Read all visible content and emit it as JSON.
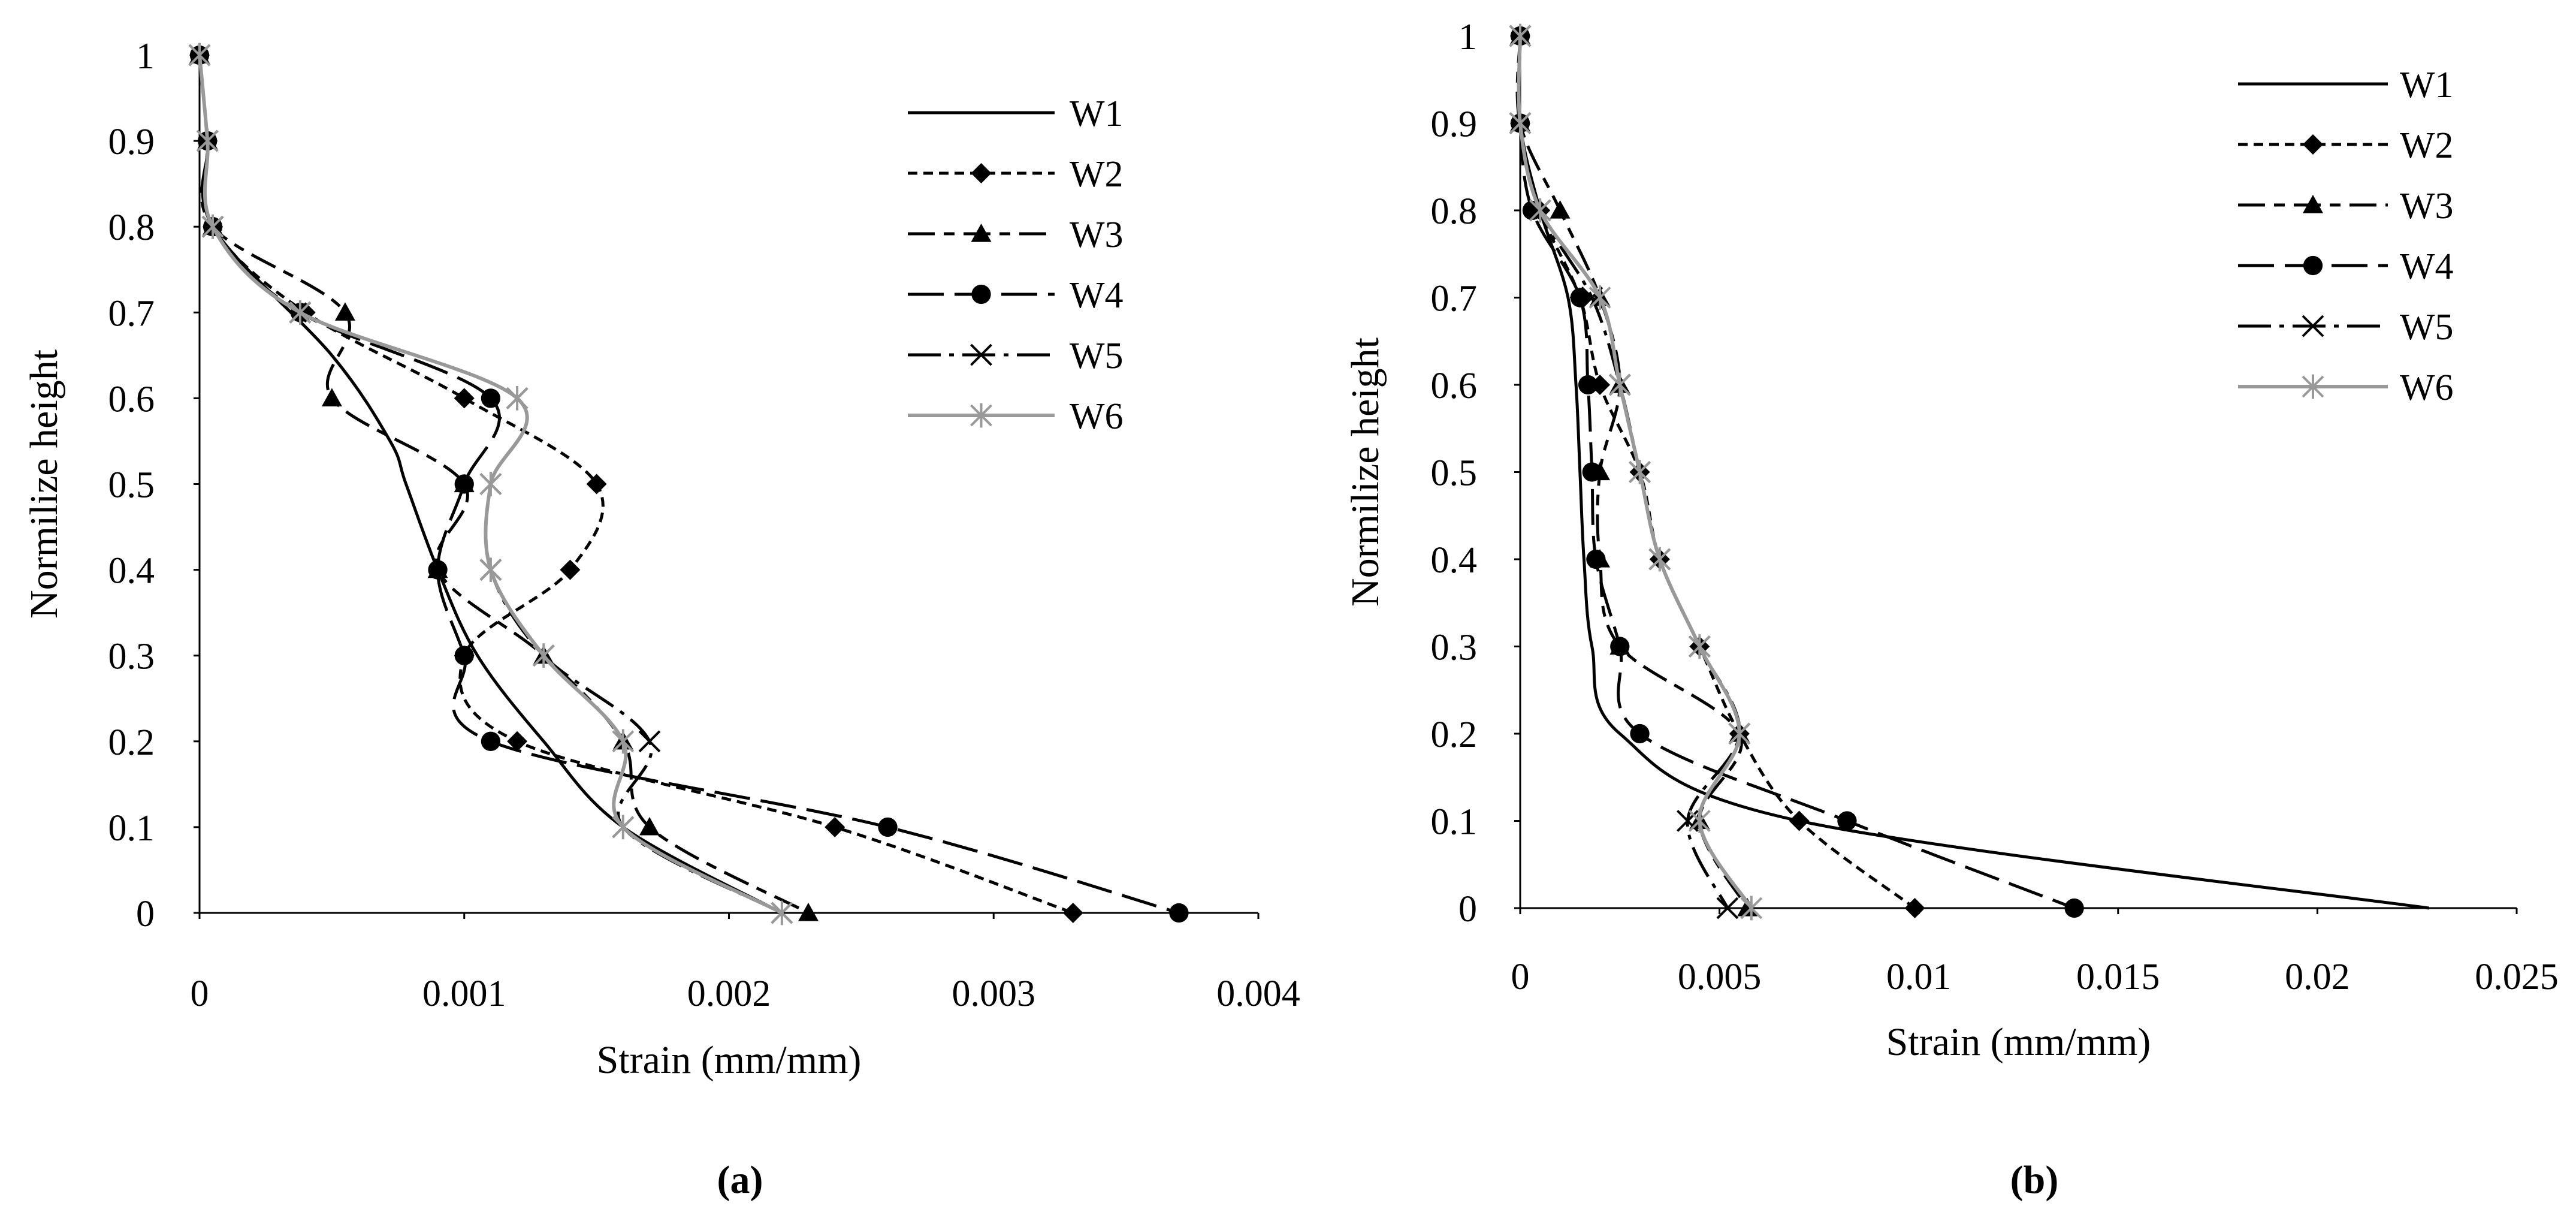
{
  "chart_data": [
    {
      "type": "line",
      "panel_label": "(a)",
      "xlabel": "Strain (mm/mm)",
      "ylabel": "Normilize height",
      "xlim": [
        0,
        0.004
      ],
      "ylim": [
        0,
        1
      ],
      "xticks": [
        0,
        0.001,
        0.002,
        0.003,
        0.004
      ],
      "xtick_labels": [
        "0",
        "0.001",
        "0.002",
        "0.003",
        "0.004"
      ],
      "yticks": [
        0,
        0.1,
        0.2,
        0.3,
        0.4,
        0.5,
        0.6,
        0.7,
        0.8,
        0.9,
        1
      ],
      "ytick_labels": [
        "0",
        "0.1",
        "0.2",
        "0.3",
        "0.4",
        "0.5",
        "0.6",
        "0.7",
        "0.8",
        "0.9",
        "1"
      ],
      "grid": false,
      "legend_position": "top-right",
      "series": [
        {
          "name": "W1",
          "x": [
            0,
            3e-05,
            5e-05,
            0.0005,
            0.00072,
            0.00078,
            0.0009,
            0.00105,
            0.0013,
            0.0016,
            0.0022
          ],
          "y": [
            1,
            0.9,
            0.8,
            0.65,
            0.55,
            0.5,
            0.4,
            0.3,
            0.2,
            0.1,
            0
          ]
        },
        {
          "name": "W2",
          "x": [
            0,
            3e-05,
            5e-05,
            0.0004,
            0.001,
            0.0015,
            0.0014,
            0.001,
            0.0012,
            0.0024,
            0.0033
          ],
          "y": [
            1,
            0.9,
            0.8,
            0.7,
            0.6,
            0.5,
            0.4,
            0.3,
            0.2,
            0.1,
            0
          ]
        },
        {
          "name": "W3",
          "x": [
            0,
            3e-05,
            5e-05,
            0.00055,
            0.0005,
            0.001,
            0.0009,
            0.0013,
            0.0016,
            0.0017,
            0.0023
          ],
          "y": [
            1,
            0.9,
            0.8,
            0.7,
            0.6,
            0.5,
            0.4,
            0.3,
            0.2,
            0.1,
            0
          ]
        },
        {
          "name": "W4",
          "x": [
            0,
            3e-05,
            5e-05,
            0.00038,
            0.0011,
            0.001,
            0.0009,
            0.001,
            0.0011,
            0.0026,
            0.0037
          ],
          "y": [
            1,
            0.9,
            0.8,
            0.7,
            0.6,
            0.5,
            0.4,
            0.3,
            0.2,
            0.1,
            0
          ]
        },
        {
          "name": "W5",
          "x": [
            0,
            3e-05,
            5e-05,
            0.00038,
            0.0012,
            0.0011,
            0.0011,
            0.0013,
            0.0017,
            0.0016,
            0.0022
          ],
          "y": [
            1,
            0.9,
            0.8,
            0.7,
            0.6,
            0.5,
            0.4,
            0.3,
            0.2,
            0.1,
            0
          ]
        },
        {
          "name": "W6",
          "x": [
            0,
            3e-05,
            5e-05,
            0.00038,
            0.0012,
            0.0011,
            0.0011,
            0.0013,
            0.0016,
            0.0016,
            0.0022
          ],
          "y": [
            1,
            0.9,
            0.8,
            0.7,
            0.6,
            0.5,
            0.4,
            0.3,
            0.2,
            0.1,
            0
          ]
        }
      ]
    },
    {
      "type": "line",
      "panel_label": "(b)",
      "xlabel": "Strain (mm/mm)",
      "ylabel": "Normilize height",
      "xlim": [
        0,
        0.025
      ],
      "ylim": [
        0,
        1
      ],
      "xticks": [
        0,
        0.005,
        0.01,
        0.015,
        0.02,
        0.025
      ],
      "xtick_labels": [
        "0",
        "0.005",
        "0.01",
        "0.015",
        "0.02",
        "0.025"
      ],
      "yticks": [
        0,
        0.1,
        0.2,
        0.3,
        0.4,
        0.5,
        0.6,
        0.7,
        0.8,
        0.9,
        1
      ],
      "ytick_labels": [
        "0",
        "0.1",
        "0.2",
        "0.3",
        "0.4",
        "0.5",
        "0.6",
        "0.7",
        "0.8",
        "0.9",
        "1"
      ],
      "grid": false,
      "legend_position": "top-right",
      "series": [
        {
          "name": "W1",
          "x": [
            0,
            0,
            0.0005,
            0.0012,
            0.0014,
            0.0015,
            0.0016,
            0.0018,
            0.0025,
            0.007,
            0.0228
          ],
          "y": [
            1,
            0.9,
            0.8,
            0.7,
            0.6,
            0.5,
            0.4,
            0.3,
            0.2,
            0.1,
            0
          ]
        },
        {
          "name": "W2",
          "x": [
            0,
            0,
            0.0005,
            0.0015,
            0.002,
            0.003,
            0.0035,
            0.0045,
            0.0055,
            0.007,
            0.0099
          ],
          "y": [
            1,
            0.9,
            0.8,
            0.7,
            0.6,
            0.5,
            0.4,
            0.3,
            0.2,
            0.1,
            0
          ]
        },
        {
          "name": "W3",
          "x": [
            0,
            0,
            0.001,
            0.002,
            0.0025,
            0.002,
            0.002,
            0.0025,
            0.0055,
            0.0045,
            0.0057
          ],
          "y": [
            1,
            0.9,
            0.8,
            0.7,
            0.6,
            0.5,
            0.4,
            0.3,
            0.2,
            0.1,
            0
          ]
        },
        {
          "name": "W4",
          "x": [
            0,
            0,
            0.0003,
            0.0015,
            0.0017,
            0.0018,
            0.0019,
            0.0025,
            0.003,
            0.0082,
            0.0139
          ],
          "y": [
            1,
            0.9,
            0.8,
            0.7,
            0.6,
            0.5,
            0.4,
            0.3,
            0.2,
            0.1,
            0
          ]
        },
        {
          "name": "W5",
          "x": [
            0,
            0,
            0.0005,
            0.0018,
            0.0025,
            0.003,
            0.0035,
            0.0045,
            0.0055,
            0.0042,
            0.0052
          ],
          "y": [
            1,
            0.9,
            0.8,
            0.7,
            0.6,
            0.5,
            0.4,
            0.3,
            0.2,
            0.1,
            0
          ]
        },
        {
          "name": "W6",
          "x": [
            0,
            0,
            0.0005,
            0.002,
            0.0025,
            0.003,
            0.0035,
            0.0045,
            0.0055,
            0.0045,
            0.0058
          ],
          "y": [
            1,
            0.9,
            0.8,
            0.7,
            0.6,
            0.5,
            0.4,
            0.3,
            0.2,
            0.1,
            0
          ]
        }
      ]
    }
  ]
}
